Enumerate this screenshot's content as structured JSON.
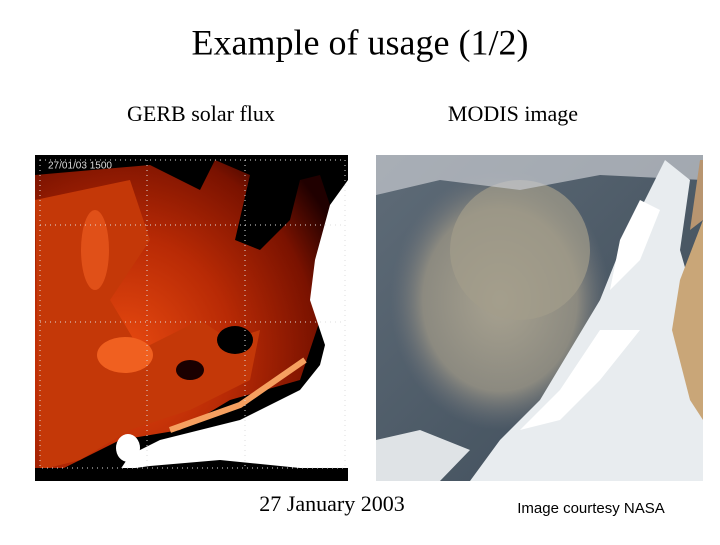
{
  "title": "Example of usage (1/2)",
  "left_panel": {
    "label": "GERB solar  flux",
    "timestamp": "27/01/03 1500",
    "caption": "27 January 2003"
  },
  "right_panel": {
    "label": "MODIS image",
    "caption": "Image courtesy NASA"
  }
}
